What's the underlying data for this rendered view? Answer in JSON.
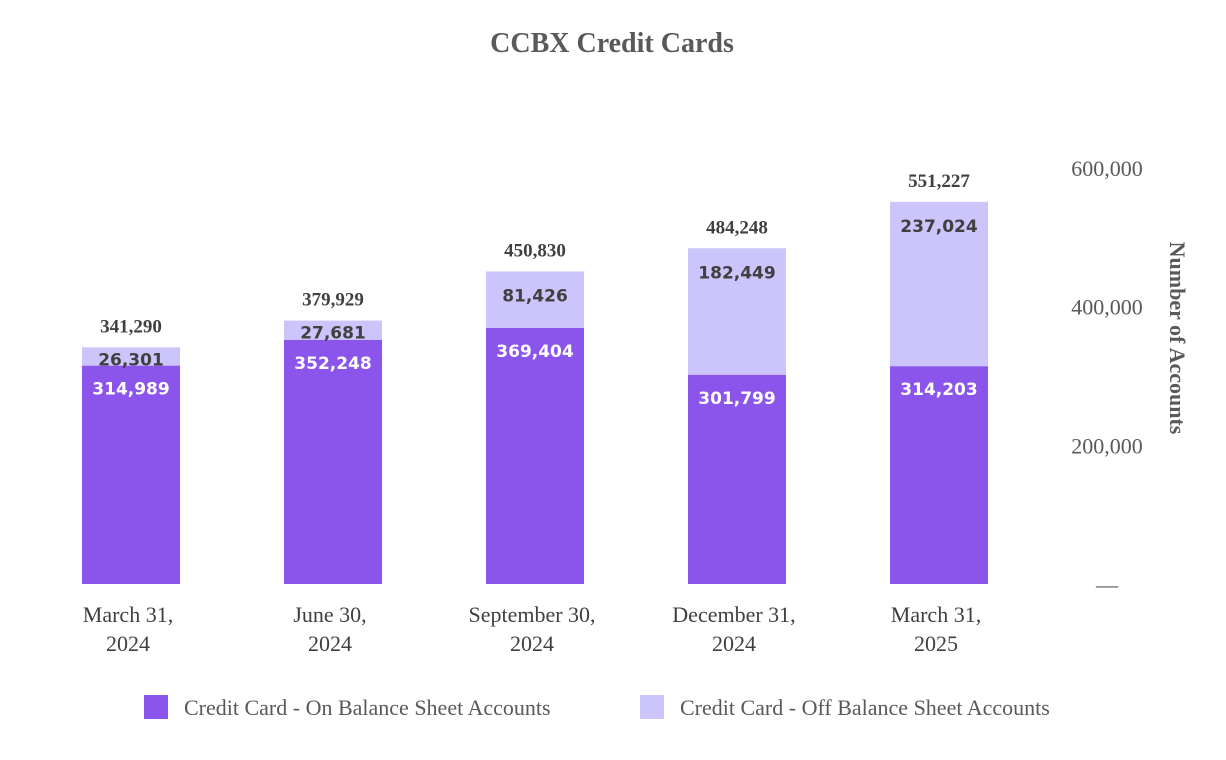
{
  "chart_data": {
    "type": "bar",
    "stacked": true,
    "title": "CCBX Credit Cards",
    "ylabel": "Number of Accounts",
    "xlabel": "",
    "ylim": [
      0,
      600000
    ],
    "yticks": [
      0,
      200000,
      400000,
      600000
    ],
    "ytick_labels": [
      "—",
      "200,000",
      "400,000",
      "600,000"
    ],
    "y_axis_side": "right",
    "categories": [
      [
        "March 31,",
        "2024"
      ],
      [
        "June 30,",
        "2024"
      ],
      [
        "September 30,",
        "2024"
      ],
      [
        "December 31,",
        "2024"
      ],
      [
        "March 31,",
        "2025"
      ]
    ],
    "series": [
      {
        "name": "Credit Card -  On Balance Sheet Accounts",
        "color": "#8b55ec",
        "values": [
          314989,
          352248,
          369404,
          301799,
          314203
        ],
        "labels": [
          "314,989",
          "352,248",
          "369,404",
          "301,799",
          "314,203"
        ]
      },
      {
        "name": "Credit Card -  Off Balance Sheet Accounts",
        "color": "#cbc5fc",
        "values": [
          26301,
          27681,
          81426,
          182449,
          237024
        ],
        "labels": [
          "26,301",
          "27,681",
          "81,426",
          "182,449",
          "237,024"
        ]
      }
    ],
    "totals": [
      341290,
      379929,
      450830,
      484248,
      551227
    ],
    "total_labels": [
      "341,290",
      "379,929",
      "450,830",
      "484,248",
      "551,227"
    ],
    "legend": "bottom"
  }
}
